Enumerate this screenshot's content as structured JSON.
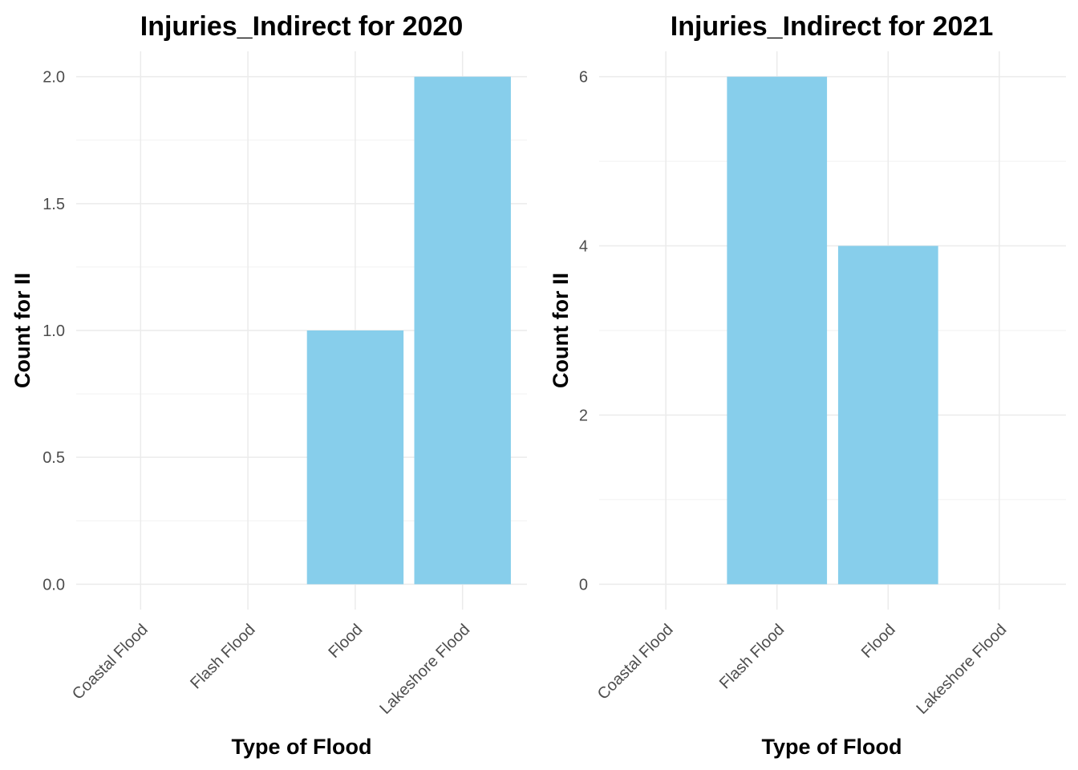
{
  "colors": {
    "bar": "#87CEEB",
    "grid_major": "#EBEBEB",
    "grid_minor": "#F2F2F2",
    "text": "#4D4D4D",
    "title": "#000000"
  },
  "chart_data": [
    {
      "type": "bar",
      "title": "Injuries_Indirect for 2020",
      "xlabel": "Type of Flood",
      "ylabel": "Count for II",
      "categories": [
        "Coastal Flood",
        "Flash Flood",
        "Flood",
        "Lakeshore Flood"
      ],
      "values": [
        0,
        0,
        1,
        2
      ],
      "ylim": [
        -0.1,
        2.1
      ],
      "yticks": [
        0,
        0.5,
        1,
        1.5,
        2
      ],
      "ytick_labels": [
        "0.0",
        "0.5",
        "1.0",
        "1.5",
        "2.0"
      ],
      "grid": true,
      "legend": "none"
    },
    {
      "type": "bar",
      "title": "Injuries_Indirect for 2021",
      "xlabel": "Type of Flood",
      "ylabel": "Count for II",
      "categories": [
        "Coastal Flood",
        "Flash Flood",
        "Flood",
        "Lakeshore Flood"
      ],
      "values": [
        0,
        6,
        4,
        0
      ],
      "ylim": [
        -0.3,
        6.3
      ],
      "yticks": [
        0,
        2,
        4,
        6
      ],
      "ytick_labels": [
        "0",
        "2",
        "4",
        "6"
      ],
      "grid": true,
      "legend": "none"
    }
  ]
}
